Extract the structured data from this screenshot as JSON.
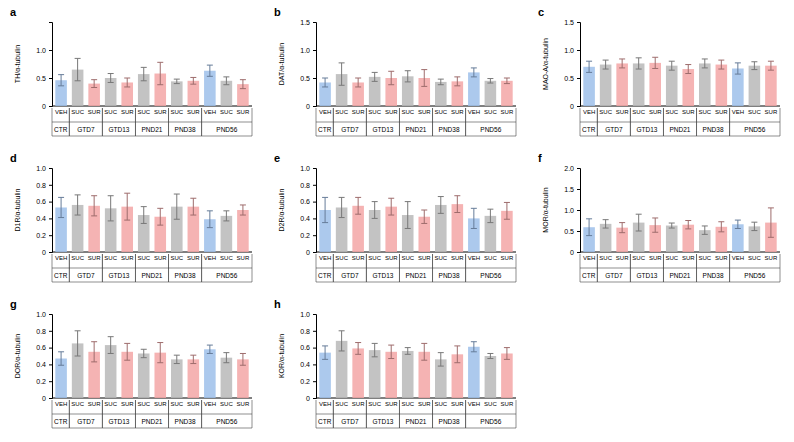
{
  "chart_data": [
    {
      "type": "bar",
      "title": "a",
      "y_label": "TH/α-tubulin",
      "categories": [
        "VEH",
        "SUC",
        "SUR",
        "SUC",
        "SUR",
        "SUC",
        "SUR",
        "SUC",
        "SUR",
        "VEH",
        "SUC",
        "SUR"
      ],
      "category_groups": [
        "CTR",
        "GTD7",
        "GTD7",
        "GTD13",
        "GTD13",
        "PND21",
        "PND21",
        "PND38",
        "PND38",
        "PND56",
        "PND56",
        "PND56"
      ],
      "values": [
        0.46,
        0.65,
        0.4,
        0.5,
        0.42,
        0.57,
        0.58,
        0.44,
        0.45,
        0.63,
        0.45,
        0.39
      ],
      "errors": [
        0.1,
        0.2,
        0.07,
        0.08,
        0.08,
        0.12,
        0.2,
        0.04,
        0.06,
        0.1,
        0.07,
        0.08
      ],
      "colors": [
        "#9dbfea",
        "#b8b8b8",
        "#f3a6a6",
        "#b8b8b8",
        "#f3a6a6",
        "#b8b8b8",
        "#f3a6a6",
        "#b8b8b8",
        "#f3a6a6",
        "#9dbfea",
        "#b8b8b8",
        "#f3a6a6"
      ],
      "ylim": [
        0,
        1.5
      ],
      "yticks": [
        0,
        0.5,
        {
          "value": 1,
          "label": "1.0"
        }
      ]
    },
    {
      "type": "bar",
      "title": "b",
      "y_label": "DAT/α-tubulin",
      "categories": [
        "VEH",
        "SUC",
        "SUR",
        "SUC",
        "SUR",
        "SUC",
        "SUR",
        "SUC",
        "SUR",
        "VEH",
        "SUC",
        "SUR"
      ],
      "category_groups": [
        "CTR",
        "GTD7",
        "GTD7",
        "GTD13",
        "GTD13",
        "PND21",
        "PND21",
        "PND38",
        "PND38",
        "PND56",
        "PND56",
        "PND56"
      ],
      "values": [
        0.42,
        0.57,
        0.42,
        0.52,
        0.5,
        0.53,
        0.5,
        0.43,
        0.44,
        0.6,
        0.45,
        0.45
      ],
      "errors": [
        0.08,
        0.2,
        0.08,
        0.08,
        0.12,
        0.1,
        0.15,
        0.05,
        0.08,
        0.08,
        0.04,
        0.05
      ],
      "colors": [
        "#9dbfea",
        "#b8b8b8",
        "#f3a6a6",
        "#b8b8b8",
        "#f3a6a6",
        "#b8b8b8",
        "#f3a6a6",
        "#b8b8b8",
        "#f3a6a6",
        "#9dbfea",
        "#b8b8b8",
        "#f3a6a6"
      ],
      "ylim": [
        0,
        1.5
      ],
      "yticks": [
        0,
        0.5,
        {
          "value": 1,
          "label": "1.0"
        },
        1.5
      ]
    },
    {
      "type": "bar",
      "title": "c",
      "y_label": "MAO-A/α-tubulin",
      "categories": [
        "VEH",
        "SUC",
        "SUR",
        "SUC",
        "SUR",
        "SUC",
        "SUR",
        "SUC",
        "SUR",
        "VEH",
        "SUC",
        "SUR"
      ],
      "category_groups": [
        "CTR",
        "GTD7",
        "GTD7",
        "GTD13",
        "GTD13",
        "PND21",
        "PND21",
        "PND38",
        "PND38",
        "PND56",
        "PND56",
        "PND56"
      ],
      "values": [
        0.7,
        0.74,
        0.76,
        0.76,
        0.77,
        0.72,
        0.66,
        0.76,
        0.74,
        0.67,
        0.72,
        0.72
      ],
      "errors": [
        0.1,
        0.08,
        0.08,
        0.1,
        0.1,
        0.08,
        0.08,
        0.08,
        0.08,
        0.1,
        0.07,
        0.08
      ],
      "colors": [
        "#9dbfea",
        "#b8b8b8",
        "#f3a6a6",
        "#b8b8b8",
        "#f3a6a6",
        "#b8b8b8",
        "#f3a6a6",
        "#b8b8b8",
        "#f3a6a6",
        "#9dbfea",
        "#b8b8b8",
        "#f3a6a6"
      ],
      "ylim": [
        0,
        1.5
      ],
      "yticks": [
        0,
        0.5,
        {
          "value": 1,
          "label": "1.0"
        },
        1.5
      ]
    },
    {
      "type": "bar",
      "title": "d",
      "y_label": "D1R/α-tubulin",
      "categories": [
        "VEH",
        "SUC",
        "SUR",
        "SUC",
        "SUR",
        "SUC",
        "SUR",
        "SUC",
        "SUR",
        "VEH",
        "SUC",
        "SUR"
      ],
      "category_groups": [
        "CTR",
        "GTD7",
        "GTD7",
        "GTD13",
        "GTD13",
        "PND21",
        "PND21",
        "PND38",
        "PND38",
        "PND56",
        "PND56",
        "PND56"
      ],
      "values": [
        0.53,
        0.56,
        0.55,
        0.52,
        0.54,
        0.44,
        0.42,
        0.54,
        0.54,
        0.39,
        0.43,
        0.5
      ],
      "errors": [
        0.12,
        0.12,
        0.12,
        0.15,
        0.16,
        0.1,
        0.1,
        0.15,
        0.1,
        0.1,
        0.06,
        0.06
      ],
      "colors": [
        "#9dbfea",
        "#b8b8b8",
        "#f3a6a6",
        "#b8b8b8",
        "#f3a6a6",
        "#b8b8b8",
        "#f3a6a6",
        "#b8b8b8",
        "#f3a6a6",
        "#9dbfea",
        "#b8b8b8",
        "#f3a6a6"
      ],
      "ylim": [
        0,
        1
      ],
      "yticks": [
        0,
        0.2,
        0.4,
        0.6,
        0.8,
        {
          "value": 1,
          "label": "1.0"
        }
      ]
    },
    {
      "type": "bar",
      "title": "e",
      "y_label": "D2R/α-tubulin",
      "categories": [
        "VEH",
        "SUC",
        "SUR",
        "SUC",
        "SUR",
        "SUC",
        "SUR",
        "SUC",
        "SUR",
        "VEH",
        "SUC",
        "SUR"
      ],
      "category_groups": [
        "CTR",
        "GTD7",
        "GTD7",
        "GTD13",
        "GTD13",
        "PND21",
        "PND21",
        "PND38",
        "PND38",
        "PND56",
        "PND56",
        "PND56"
      ],
      "values": [
        0.5,
        0.53,
        0.55,
        0.5,
        0.54,
        0.44,
        0.42,
        0.56,
        0.57,
        0.4,
        0.43,
        0.49
      ],
      "errors": [
        0.15,
        0.12,
        0.1,
        0.1,
        0.1,
        0.16,
        0.08,
        0.1,
        0.1,
        0.12,
        0.08,
        0.1
      ],
      "colors": [
        "#9dbfea",
        "#b8b8b8",
        "#f3a6a6",
        "#b8b8b8",
        "#f3a6a6",
        "#b8b8b8",
        "#f3a6a6",
        "#b8b8b8",
        "#f3a6a6",
        "#9dbfea",
        "#b8b8b8",
        "#f3a6a6"
      ],
      "ylim": [
        0,
        1
      ],
      "yticks": [
        0,
        0.2,
        0.4,
        0.6,
        0.8,
        {
          "value": 1,
          "label": "1.0"
        }
      ]
    },
    {
      "type": "bar",
      "title": "f",
      "y_label": "MOR/α-tubulin",
      "categories": [
        "VEH",
        "SUC",
        "SUR",
        "SUC",
        "SUR",
        "SUC",
        "SUR",
        "SUC",
        "SUR",
        "VEH",
        "SUC",
        "SUR"
      ],
      "category_groups": [
        "CTR",
        "GTD7",
        "GTD7",
        "GTD13",
        "GTD13",
        "PND21",
        "PND21",
        "PND38",
        "PND38",
        "PND56",
        "PND56",
        "PND56"
      ],
      "values": [
        0.59,
        0.67,
        0.58,
        0.7,
        0.64,
        0.63,
        0.65,
        0.52,
        0.6,
        0.66,
        0.61,
        0.7
      ],
      "errors": [
        0.2,
        0.1,
        0.12,
        0.2,
        0.17,
        0.06,
        0.1,
        0.1,
        0.12,
        0.1,
        0.1,
        0.35
      ],
      "colors": [
        "#9dbfea",
        "#b8b8b8",
        "#f3a6a6",
        "#b8b8b8",
        "#f3a6a6",
        "#b8b8b8",
        "#f3a6a6",
        "#b8b8b8",
        "#f3a6a6",
        "#9dbfea",
        "#b8b8b8",
        "#f3a6a6"
      ],
      "ylim": [
        0,
        2
      ],
      "yticks": [
        0,
        0.5,
        {
          "value": 1,
          "label": "1.0"
        },
        1.5,
        {
          "value": 2,
          "label": "2.0"
        }
      ]
    },
    {
      "type": "bar",
      "title": "g",
      "y_label": "DOR/α-tubulin",
      "categories": [
        "VEH",
        "SUC",
        "SUR",
        "SUC",
        "SUR",
        "SUC",
        "SUR",
        "SUC",
        "SUR",
        "VEH",
        "SUC",
        "SUR"
      ],
      "category_groups": [
        "CTR",
        "GTD7",
        "GTD7",
        "GTD13",
        "GTD13",
        "PND21",
        "PND21",
        "PND38",
        "PND38",
        "PND56",
        "PND56",
        "PND56"
      ],
      "values": [
        0.47,
        0.65,
        0.55,
        0.63,
        0.55,
        0.53,
        0.54,
        0.46,
        0.46,
        0.58,
        0.48,
        0.46
      ],
      "errors": [
        0.08,
        0.15,
        0.12,
        0.1,
        0.1,
        0.05,
        0.12,
        0.05,
        0.05,
        0.05,
        0.06,
        0.07
      ],
      "colors": [
        "#9dbfea",
        "#b8b8b8",
        "#f3a6a6",
        "#b8b8b8",
        "#f3a6a6",
        "#b8b8b8",
        "#f3a6a6",
        "#b8b8b8",
        "#f3a6a6",
        "#9dbfea",
        "#b8b8b8",
        "#f3a6a6"
      ],
      "ylim": [
        0,
        1
      ],
      "yticks": [
        0,
        0.2,
        0.4,
        0.6,
        0.8,
        {
          "value": 1,
          "label": "1.0"
        }
      ]
    },
    {
      "type": "bar",
      "title": "h",
      "y_label": "KOR/α-tubulin",
      "categories": [
        "VEH",
        "SUC",
        "SUR",
        "SUC",
        "SUR",
        "SUC",
        "SUR",
        "SUC",
        "SUR",
        "VEH",
        "SUC",
        "SUR"
      ],
      "category_groups": [
        "CTR",
        "GTD7",
        "GTD7",
        "GTD13",
        "GTD13",
        "PND21",
        "PND21",
        "PND38",
        "PND38",
        "PND56",
        "PND56",
        "PND56"
      ],
      "values": [
        0.54,
        0.68,
        0.59,
        0.57,
        0.55,
        0.56,
        0.55,
        0.46,
        0.52,
        0.61,
        0.5,
        0.53
      ],
      "errors": [
        0.08,
        0.12,
        0.07,
        0.08,
        0.08,
        0.04,
        0.1,
        0.08,
        0.1,
        0.06,
        0.03,
        0.07
      ],
      "colors": [
        "#9dbfea",
        "#b8b8b8",
        "#f3a6a6",
        "#b8b8b8",
        "#f3a6a6",
        "#b8b8b8",
        "#f3a6a6",
        "#b8b8b8",
        "#f3a6a6",
        "#9dbfea",
        "#b8b8b8",
        "#f3a6a6"
      ],
      "ylim": [
        0,
        1
      ],
      "yticks": [
        0,
        0.2,
        0.4,
        0.6,
        0.8,
        {
          "value": 1,
          "label": "1.0"
        }
      ]
    }
  ]
}
